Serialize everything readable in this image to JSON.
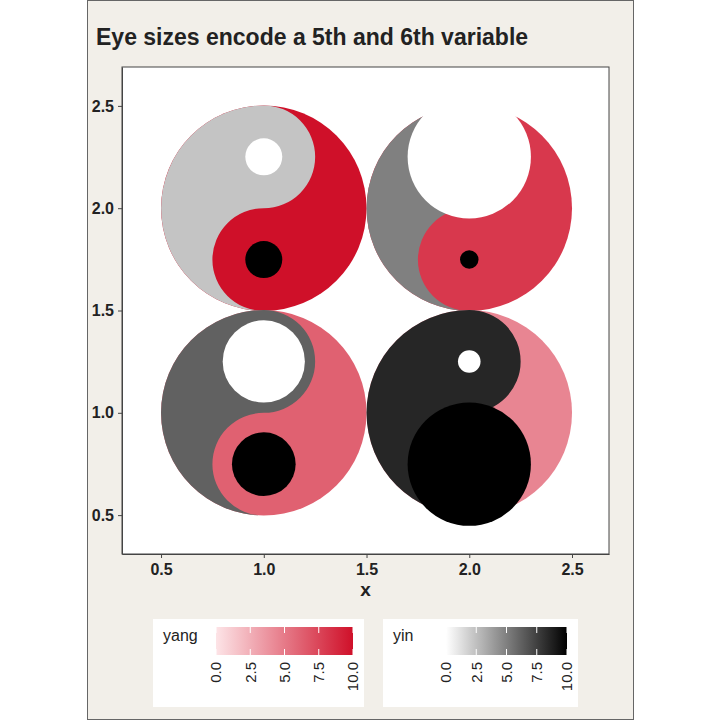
{
  "chart_data": {
    "type": "yinyang",
    "title": "Eye sizes encode a 5th and 6th variable",
    "x_label": "x",
    "x": [
      1,
      2,
      1,
      2
    ],
    "y": [
      2,
      2,
      1,
      1
    ],
    "size": [
      0.5,
      0.5,
      0.5,
      0.5
    ],
    "yin": [
      2.3,
      5,
      6.2,
      8.5
    ],
    "yang": [
      10,
      8.1,
      6.2,
      4.5
    ],
    "yin_eye": [
      0.09,
      0.3,
      0.2,
      0.055
    ],
    "yang_eye": [
      0.09,
      0.045,
      0.155,
      0.3
    ],
    "xlim": [
      0.31,
      2.68
    ],
    "ylim": [
      0.31,
      2.69
    ],
    "xticks": [
      0.5,
      {
        "value": 1,
        "label": "1.0"
      },
      1.5,
      {
        "value": 2,
        "label": "2.0"
      },
      2.5
    ],
    "yticks": [
      0.5,
      {
        "value": 1,
        "label": "1.0"
      },
      1.5,
      {
        "value": 2,
        "label": "2.0"
      },
      2.5
    ],
    "grid": false,
    "legend": "bottom",
    "colorbars": [
      {
        "title": "yang",
        "lim": [
          0,
          10
        ],
        "ticks": [
          {
            "value": 0,
            "label": "0.0"
          },
          2.5,
          {
            "value": 5,
            "label": "5.0"
          },
          7.5,
          {
            "value": 10,
            "label": "10.0"
          }
        ]
      },
      {
        "title": "yin",
        "lim": [
          0,
          10
        ],
        "ticks": [
          {
            "value": 0,
            "label": "0.0"
          },
          2.5,
          {
            "value": 5,
            "label": "5.0"
          },
          7.5,
          {
            "value": 10,
            "label": "10.0"
          }
        ]
      }
    ]
  }
}
